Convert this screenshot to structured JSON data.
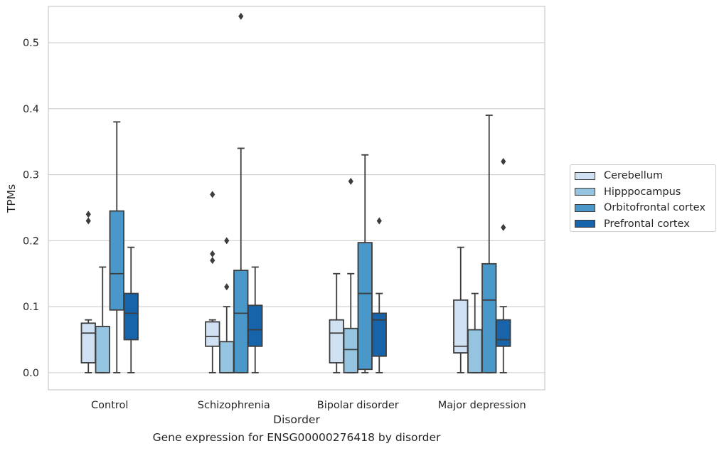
{
  "caption": "Gene expression for ENSG00000276418 by disorder",
  "chart_data": {
    "type": "box",
    "title": "",
    "xlabel": "Disorder",
    "ylabel": "TPMs",
    "ylim": [
      -0.026,
      0.555
    ],
    "yticks": [
      0.0,
      0.1,
      0.2,
      0.3,
      0.4,
      0.5
    ],
    "ytick_labels": [
      "0.0",
      "0.1",
      "0.2",
      "0.3",
      "0.4",
      "0.5"
    ],
    "grid": true,
    "legend_position": "right",
    "categories": [
      "Control",
      "Schizophrenia",
      "Bipolar disorder",
      "Major depression"
    ],
    "series": [
      {
        "name": "Cerebellum",
        "color": "#cfe1f2",
        "boxes": [
          {
            "min": 0.0,
            "q1": 0.015,
            "median": 0.06,
            "q3": 0.075,
            "max": 0.08,
            "outliers": [
              0.23,
              0.24
            ]
          },
          {
            "min": 0.0,
            "q1": 0.04,
            "median": 0.055,
            "q3": 0.077,
            "max": 0.08,
            "outliers": [
              0.17,
              0.18,
              0.27
            ]
          },
          {
            "min": 0.0,
            "q1": 0.015,
            "median": 0.06,
            "q3": 0.08,
            "max": 0.15,
            "outliers": []
          },
          {
            "min": 0.0,
            "q1": 0.03,
            "median": 0.04,
            "q3": 0.11,
            "max": 0.19,
            "outliers": []
          }
        ]
      },
      {
        "name": "Hipppocampus",
        "color": "#94c4df",
        "boxes": [
          {
            "min": 0.0,
            "q1": 0.0,
            "median": 0.0,
            "q3": 0.07,
            "max": 0.16,
            "outliers": []
          },
          {
            "min": 0.0,
            "q1": 0.0,
            "median": 0.0,
            "q3": 0.047,
            "max": 0.1,
            "outliers": [
              0.13,
              0.2
            ]
          },
          {
            "min": 0.0,
            "q1": 0.0,
            "median": 0.035,
            "q3": 0.067,
            "max": 0.15,
            "outliers": [
              0.29
            ]
          },
          {
            "min": 0.0,
            "q1": 0.0,
            "median": 0.0,
            "q3": 0.065,
            "max": 0.12,
            "outliers": []
          }
        ]
      },
      {
        "name": "Orbitofrontal cortex",
        "color": "#4a98c9",
        "boxes": [
          {
            "min": 0.0,
            "q1": 0.095,
            "median": 0.15,
            "q3": 0.245,
            "max": 0.38,
            "outliers": []
          },
          {
            "min": 0.0,
            "q1": 0.0,
            "median": 0.09,
            "q3": 0.155,
            "max": 0.34,
            "outliers": [
              0.54
            ]
          },
          {
            "min": 0.0,
            "q1": 0.005,
            "median": 0.12,
            "q3": 0.197,
            "max": 0.33,
            "outliers": []
          },
          {
            "min": 0.0,
            "q1": 0.0,
            "median": 0.11,
            "q3": 0.165,
            "max": 0.39,
            "outliers": []
          }
        ]
      },
      {
        "name": "Prefrontal cortex",
        "color": "#1764ab",
        "boxes": [
          {
            "min": 0.0,
            "q1": 0.05,
            "median": 0.09,
            "q3": 0.12,
            "max": 0.19,
            "outliers": []
          },
          {
            "min": 0.0,
            "q1": 0.04,
            "median": 0.065,
            "q3": 0.102,
            "max": 0.16,
            "outliers": []
          },
          {
            "min": 0.0,
            "q1": 0.025,
            "median": 0.08,
            "q3": 0.09,
            "max": 0.12,
            "outliers": [
              0.23
            ]
          },
          {
            "min": 0.0,
            "q1": 0.04,
            "median": 0.05,
            "q3": 0.08,
            "max": 0.1,
            "outliers": [
              0.22,
              0.32
            ]
          }
        ]
      }
    ]
  }
}
